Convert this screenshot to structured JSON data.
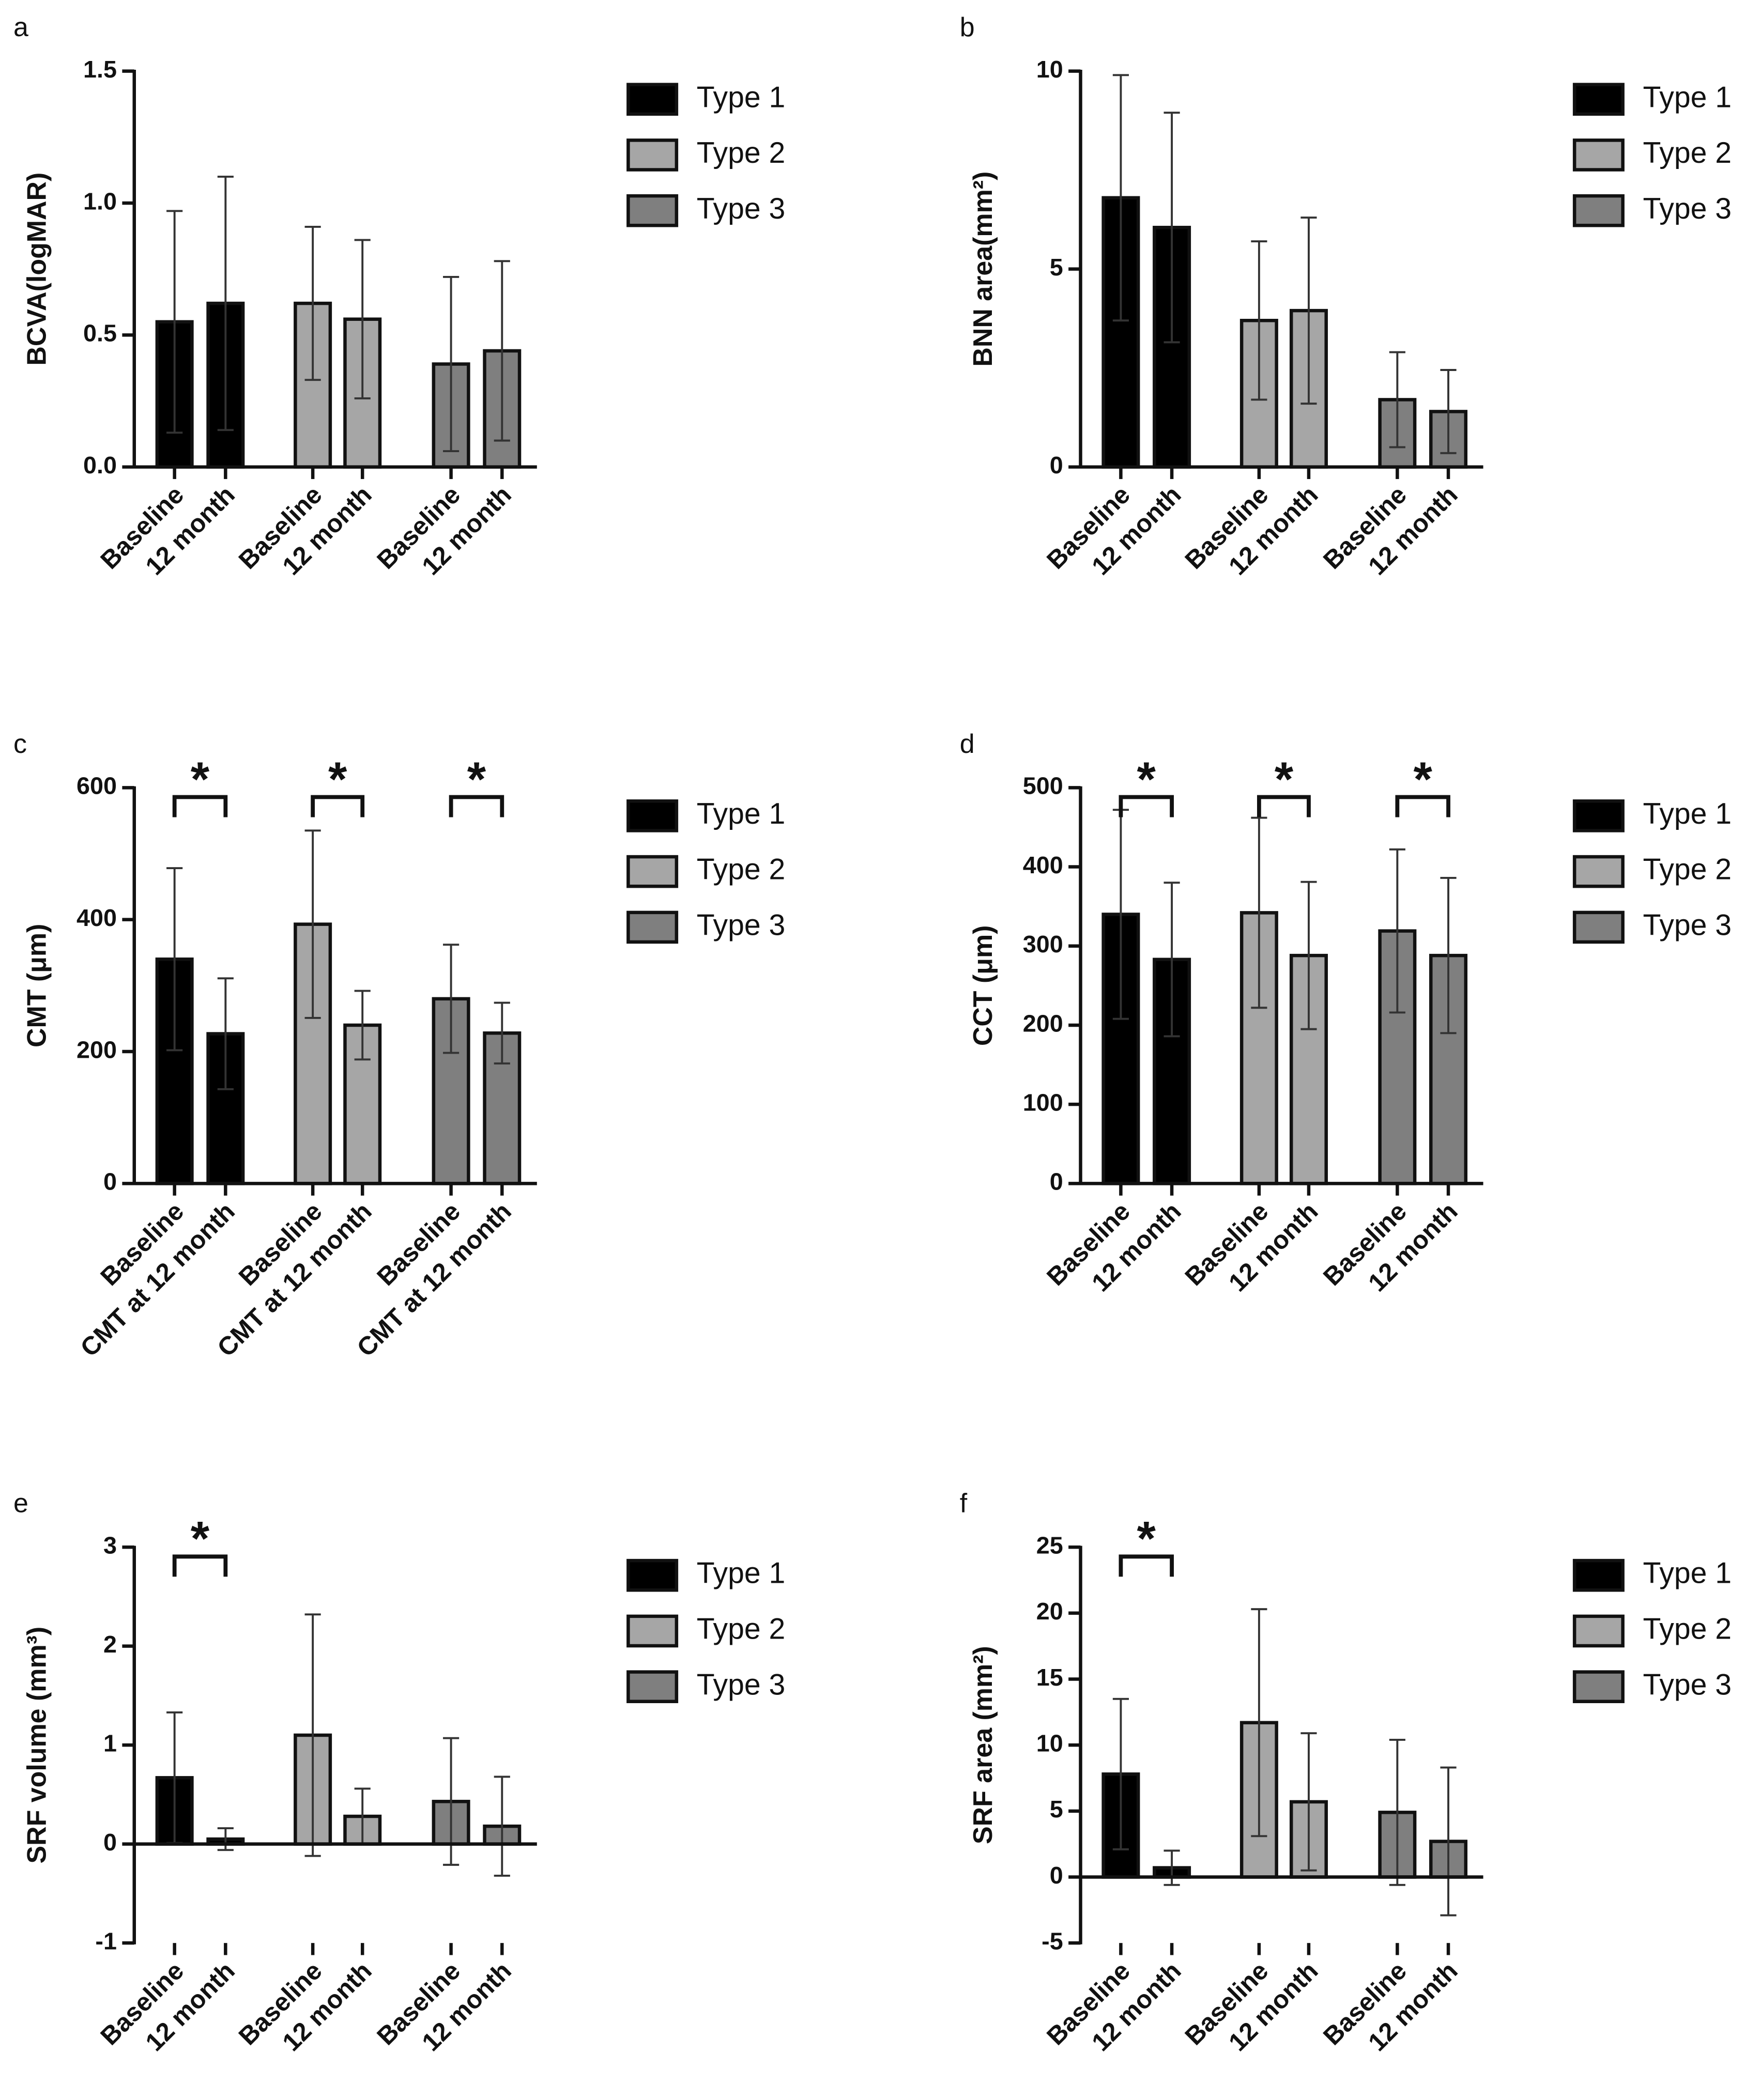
{
  "chart_data": [
    {
      "type": "bar",
      "label": "a",
      "ylabel": "BCVA(logMAR)",
      "categories": [
        "Baseline",
        "12 month"
      ],
      "ylim": [
        0,
        1.5
      ],
      "yticks": [
        {
          "value": 0,
          "label": "0.0"
        },
        0.5,
        {
          "value": 1,
          "label": "1.0"
        },
        1.5
      ],
      "series": [
        {
          "name": "Type 1",
          "color": "#000000",
          "values": [
            0.55,
            0.62
          ],
          "errors": [
            0.42,
            0.48
          ]
        },
        {
          "name": "Type 2",
          "color": "#a6a6a6",
          "values": [
            0.62,
            0.56
          ],
          "errors": [
            0.29,
            0.3
          ]
        },
        {
          "name": "Type 3",
          "color": "#7f7f7f",
          "values": [
            0.39,
            0.44
          ],
          "errors": [
            0.33,
            0.34
          ]
        }
      ]
    },
    {
      "type": "bar",
      "label": "b",
      "ylabel": "BNN area(mm²)",
      "categories": [
        "Baseline",
        "12 month"
      ],
      "ylim": [
        0,
        10
      ],
      "yticks": [
        0,
        5,
        10
      ],
      "series": [
        {
          "name": "Type 1",
          "color": "#000000",
          "values": [
            6.8,
            6.05
          ],
          "errors": [
            3.1,
            2.9
          ]
        },
        {
          "name": "Type 2",
          "color": "#a6a6a6",
          "values": [
            3.7,
            3.95
          ],
          "errors": [
            2.0,
            2.35
          ]
        },
        {
          "name": "Type 3",
          "color": "#7f7f7f",
          "values": [
            1.7,
            1.4
          ],
          "errors": [
            1.2,
            1.05
          ]
        }
      ]
    },
    {
      "type": "bar",
      "label": "c",
      "ylabel": "CMT (μm)",
      "categories": [
        "Baseline",
        "CMT at 12 month"
      ],
      "ylim": [
        0,
        600
      ],
      "yticks": [
        0,
        200,
        400,
        600
      ],
      "series": [
        {
          "name": "Type 1",
          "color": "#000000",
          "values": [
            340,
            227
          ],
          "errors": [
            138,
            84
          ],
          "significance": "*"
        },
        {
          "name": "Type 2",
          "color": "#a6a6a6",
          "values": [
            393,
            240
          ],
          "errors": [
            142,
            52
          ],
          "significance": "*"
        },
        {
          "name": "Type 3",
          "color": "#7f7f7f",
          "values": [
            280,
            228
          ],
          "errors": [
            82,
            46
          ],
          "significance": "*"
        }
      ]
    },
    {
      "type": "bar",
      "label": "d",
      "ylabel": "CCT (μm)",
      "categories": [
        "Baseline",
        "12 month"
      ],
      "ylim": [
        0,
        500
      ],
      "yticks": [
        0,
        100,
        200,
        300,
        400,
        500
      ],
      "series": [
        {
          "name": "Type 1",
          "color": "#000000",
          "values": [
            340,
            283
          ],
          "errors": [
            132,
            97
          ],
          "significance": "*"
        },
        {
          "name": "Type 2",
          "color": "#a6a6a6",
          "values": [
            342,
            288
          ],
          "errors": [
            120,
            93
          ],
          "significance": "*"
        },
        {
          "name": "Type 3",
          "color": "#7f7f7f",
          "values": [
            319,
            288
          ],
          "errors": [
            103,
            98
          ],
          "significance": "*"
        }
      ]
    },
    {
      "type": "bar",
      "label": "e",
      "ylabel": "SRF volume (mm³)",
      "categories": [
        "Baseline",
        "12 month"
      ],
      "ylim": [
        -1,
        3
      ],
      "yticks": [
        -1,
        0,
        1,
        2,
        3
      ],
      "series": [
        {
          "name": "Type 1",
          "color": "#000000",
          "values": [
            0.67,
            0.05
          ],
          "errors": [
            0.66,
            0.11
          ],
          "significance": "*"
        },
        {
          "name": "Type 2",
          "color": "#a6a6a6",
          "values": [
            1.1,
            0.28
          ],
          "errors": [
            1.22,
            0.28
          ]
        },
        {
          "name": "Type 3",
          "color": "#7f7f7f",
          "values": [
            0.43,
            0.18
          ],
          "errors": [
            0.64,
            0.5
          ]
        }
      ]
    },
    {
      "type": "bar",
      "label": "f",
      "ylabel": "SRF area (mm²)",
      "categories": [
        "Baseline",
        "12 month"
      ],
      "ylim": [
        -5,
        25
      ],
      "yticks": [
        -5,
        0,
        5,
        10,
        15,
        20,
        25
      ],
      "series": [
        {
          "name": "Type 1",
          "color": "#000000",
          "values": [
            7.8,
            0.7
          ],
          "errors": [
            5.7,
            1.3
          ],
          "significance": "*"
        },
        {
          "name": "Type 2",
          "color": "#a6a6a6",
          "values": [
            11.7,
            5.7
          ],
          "errors": [
            8.6,
            5.2
          ]
        },
        {
          "name": "Type 3",
          "color": "#7f7f7f",
          "values": [
            4.9,
            2.7
          ],
          "errors": [
            5.5,
            5.6
          ]
        }
      ]
    }
  ]
}
